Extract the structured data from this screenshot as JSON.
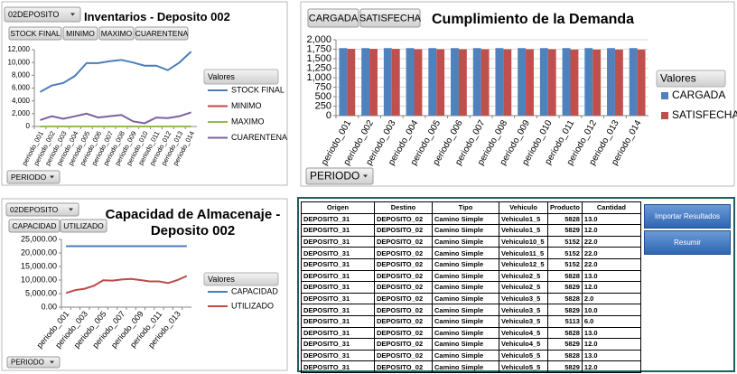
{
  "chart_data": [
    {
      "type": "line",
      "title": "Inventarios - Deposito 002",
      "filter": "02DEPOSITO",
      "field_buttons": [
        "STOCK FINAL",
        "MINIMO",
        "MAXIMO",
        "CUARENTENA"
      ],
      "axis_button": "PERIODO",
      "legend_title": "Valores",
      "categories": [
        "periodo_001",
        "periodo_002",
        "periodo_003",
        "periodo_004",
        "periodo_005",
        "periodo_006",
        "periodo_007",
        "periodo_008",
        "periodo_009",
        "periodo_010",
        "periodo_011",
        "periodo_012",
        "periodo_013",
        "periodo_014"
      ],
      "series": [
        {
          "name": "STOCK FINAL",
          "color": "#4a7ebb",
          "values": [
            5400,
            6400,
            6800,
            7900,
            9900,
            9900,
            10200,
            10400,
            10000,
            9500,
            9500,
            8800,
            10000,
            11700
          ]
        },
        {
          "name": "MINIMO",
          "color": "#be4b48",
          "values": [
            0,
            0,
            0,
            0,
            0,
            0,
            0,
            0,
            0,
            0,
            0,
            0,
            0,
            0
          ]
        },
        {
          "name": "MAXIMO",
          "color": "#98b954",
          "values": [
            0,
            0,
            0,
            0,
            0,
            0,
            0,
            0,
            0,
            0,
            0,
            0,
            0,
            0
          ]
        },
        {
          "name": "CUARENTENA",
          "color": "#7d60a0",
          "values": [
            1000,
            1600,
            1200,
            1600,
            2000,
            1400,
            1600,
            1800,
            800,
            500,
            1400,
            1300,
            1600,
            2200
          ]
        }
      ],
      "ylim": [
        0,
        12000
      ],
      "yticks": [
        0,
        {
          "value": 2000,
          "label": "2,000"
        },
        {
          "value": 4000,
          "label": "4,000"
        },
        {
          "value": 6000,
          "label": "6,000"
        },
        {
          "value": 8000,
          "label": "8,000"
        },
        {
          "value": 10000,
          "label": "10,000"
        },
        {
          "value": 12000,
          "label": "12,000"
        }
      ],
      "grid": false
    },
    {
      "type": "bar",
      "title": "Cumplimiento de la Demanda",
      "field_buttons": [
        "CARGADA",
        "SATISFECHA"
      ],
      "axis_button": "PERIODO",
      "legend_title": "Valores",
      "categories": [
        "periodo_001",
        "periodo_002",
        "periodo_003",
        "periodo_004",
        "periodo_005",
        "periodo_006",
        "periodo_007",
        "periodo_008",
        "periodo_009",
        "periodo_010",
        "periodo_011",
        "periodo_012",
        "periodo_013",
        "periodo_014"
      ],
      "series": [
        {
          "name": "CARGADA",
          "color": "#4f81bd",
          "values": [
            1780,
            1780,
            1780,
            1780,
            1780,
            1780,
            1780,
            1780,
            1780,
            1780,
            1780,
            1780,
            1780,
            1780
          ]
        },
        {
          "name": "SATISFECHA",
          "color": "#c0504d",
          "values": [
            1760,
            1760,
            1760,
            1750,
            1750,
            1750,
            1750,
            1750,
            1750,
            1750,
            1740,
            1740,
            1740,
            1740
          ]
        }
      ],
      "ylim": [
        0,
        2000
      ],
      "yticks": [
        0,
        250,
        500,
        750,
        {
          "value": 1000,
          "label": "1,000"
        },
        {
          "value": 1250,
          "label": "1,250"
        },
        {
          "value": 1500,
          "label": "1,500"
        },
        {
          "value": 1750,
          "label": "1,750"
        },
        {
          "value": 2000,
          "label": "2,000"
        }
      ],
      "grid": true
    },
    {
      "type": "line",
      "title": "Capacidad de Almacenaje - Deposito 002",
      "filter": "02DEPOSITO",
      "field_buttons": [
        "CAPACIDAD",
        "UTILIZADO"
      ],
      "axis_button": "PERIODO",
      "legend_title": "Valores",
      "categories": [
        "periodo_001",
        null,
        "periodo_003",
        null,
        "periodo_005",
        null,
        "periodo_007",
        null,
        "periodo_009",
        null,
        "periodo_011",
        null,
        "periodo_013",
        null
      ],
      "series": [
        {
          "name": "CAPACIDAD",
          "color": "#4a7ebb",
          "values": [
            22500,
            22500,
            22500,
            22500,
            22500,
            22500,
            22500,
            22500,
            22500,
            22500,
            22500,
            22500,
            22500,
            22500
          ]
        },
        {
          "name": "UTILIZADO",
          "color": "#be4b48",
          "values": [
            5200,
            6300,
            6800,
            7900,
            9900,
            9800,
            10200,
            10400,
            10000,
            9500,
            9500,
            8900,
            10000,
            11500
          ]
        }
      ],
      "ylim": [
        0,
        25000
      ],
      "yticks": [
        {
          "value": 0,
          "label": "0.00"
        },
        {
          "value": 5000,
          "label": "5,000.00"
        },
        {
          "value": 10000,
          "label": "10,000.00"
        },
        {
          "value": 15000,
          "label": "15,000.00"
        },
        {
          "value": 20000,
          "label": "20,000.00"
        },
        {
          "value": 25000,
          "label": "25,000.00"
        }
      ],
      "grid": false
    }
  ],
  "table": {
    "columns": [
      "Origen",
      "Destino",
      "Tipo",
      "Vehiculo",
      "Producto",
      "Cantidad"
    ],
    "rows": [
      [
        "DEPOSITO_31",
        "DEPOSITO_02",
        "Camino Simple",
        "Vehiculo1_5",
        "5828",
        "13.0"
      ],
      [
        "DEPOSITO_31",
        "DEPOSITO_02",
        "Camino Simple",
        "Vehiculo1_5",
        "5829",
        "12.0"
      ],
      [
        "DEPOSITO_31",
        "DEPOSITO_02",
        "Camino Simple",
        "Vehiculo10_5",
        "5152",
        "22.0"
      ],
      [
        "DEPOSITO_31",
        "DEPOSITO_02",
        "Camino Simple",
        "Vehiculo11_5",
        "5152",
        "22.0"
      ],
      [
        "DEPOSITO_31",
        "DEPOSITO_02",
        "Camino Simple",
        "Vehiculo12_5",
        "5152",
        "22.0"
      ],
      [
        "DEPOSITO_31",
        "DEPOSITO_02",
        "Camino Simple",
        "Vehiculo2_5",
        "5828",
        "13.0"
      ],
      [
        "DEPOSITO_31",
        "DEPOSITO_02",
        "Camino Simple",
        "Vehiculo2_5",
        "5829",
        "12.0"
      ],
      [
        "DEPOSITO_31",
        "DEPOSITO_02",
        "Camino Simple",
        "Vehiculo3_5",
        "5828",
        "2.0"
      ],
      [
        "DEPOSITO_31",
        "DEPOSITO_02",
        "Camino Simple",
        "Vehiculo3_5",
        "5829",
        "10.0"
      ],
      [
        "DEPOSITO_31",
        "DEPOSITO_02",
        "Camino Simple",
        "Vehiculo3_5",
        "5113",
        "6.0"
      ],
      [
        "DEPOSITO_31",
        "DEPOSITO_02",
        "Camino Simple",
        "Vehiculo4_5",
        "5828",
        "13.0"
      ],
      [
        "DEPOSITO_31",
        "DEPOSITO_02",
        "Camino Simple",
        "Vehiculo4_5",
        "5829",
        "12.0"
      ],
      [
        "DEPOSITO_31",
        "DEPOSITO_02",
        "Camino Simple",
        "Vehiculo5_5",
        "5828",
        "13.0"
      ],
      [
        "DEPOSITO_31",
        "DEPOSITO_02",
        "Camino Simple",
        "Vehiculo5_5",
        "5829",
        "12.0"
      ]
    ]
  },
  "buttons": [
    "Importar Resultados",
    "Resumir"
  ]
}
